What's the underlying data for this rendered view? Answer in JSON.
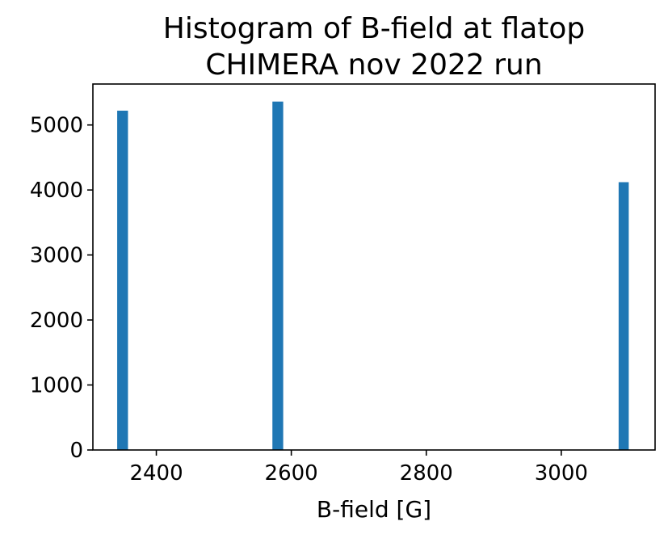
{
  "chart_data": {
    "type": "bar",
    "title_lines": [
      "Histogram of B-field at flatop",
      "CHIMERA nov 2022 run"
    ],
    "xlabel": "B-field [G]",
    "ylabel": "",
    "xlim": [
      2306,
      3139
    ],
    "ylim": [
      0,
      5630
    ],
    "x_ticks": [
      {
        "value": 2400,
        "label": "2400"
      },
      {
        "value": 2600,
        "label": "2600"
      },
      {
        "value": 2800,
        "label": "2800"
      },
      {
        "value": 3000,
        "label": "3000"
      }
    ],
    "y_ticks": [
      {
        "value": 0,
        "label": "0"
      },
      {
        "value": 1000,
        "label": "1000"
      },
      {
        "value": 2000,
        "label": "2000"
      },
      {
        "value": 3000,
        "label": "3000"
      },
      {
        "value": 4000,
        "label": "4000"
      },
      {
        "value": 5000,
        "label": "5000"
      }
    ],
    "bins": [
      {
        "x0": 2342,
        "x1": 2358,
        "count": 5220
      },
      {
        "x0": 2572,
        "x1": 2588,
        "count": 5360
      },
      {
        "x0": 3085,
        "x1": 3100,
        "count": 4120
      }
    ],
    "bar_color": "#1f77b4",
    "grid": false
  }
}
